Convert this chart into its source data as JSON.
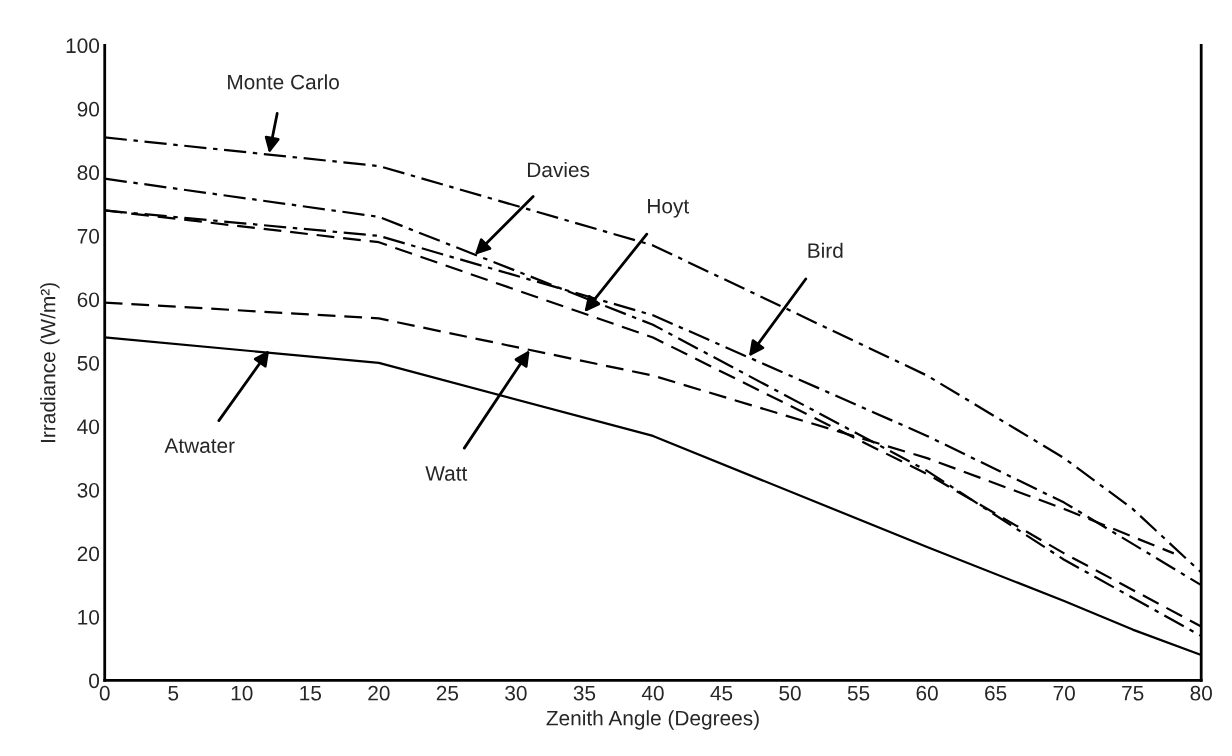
{
  "chart_data": {
    "type": "line",
    "xlabel": "Zenith Angle (Degrees)",
    "ylabel": "Irradiance (W/m²)",
    "series": [
      {
        "color": "#000000",
        "line_style": "dashdot",
        "x": [
          0,
          20,
          40,
          60,
          70,
          75,
          80
        ],
        "values": [
          85.5,
          81,
          68.5,
          48,
          35,
          27,
          17
        ]
      },
      {
        "color": "#000000",
        "line_style": "dashdot",
        "x": [
          0,
          20,
          40,
          60,
          70,
          80
        ],
        "values": [
          74,
          70,
          57.5,
          38.5,
          28,
          15
        ]
      },
      {
        "color": "#000000",
        "line_style": "dashdot",
        "x": [
          0,
          20,
          40,
          60,
          70,
          80
        ],
        "values": [
          79,
          73,
          56,
          33,
          19,
          7
        ]
      },
      {
        "color": "#000000",
        "line_style": "dashed",
        "x": [
          0,
          20,
          40,
          60,
          70,
          80
        ],
        "values": [
          74,
          69,
          54,
          32.5,
          20,
          8.5
        ]
      },
      {
        "color": "#000000",
        "line_style": "dashed",
        "x": [
          0,
          20,
          40,
          60,
          70,
          78
        ],
        "values": [
          59.5,
          57,
          48,
          35,
          27,
          20
        ]
      },
      {
        "color": "#000000",
        "line_style": "solid",
        "x": [
          0,
          20,
          40,
          60,
          70,
          75,
          80
        ],
        "values": [
          54,
          50,
          38.5,
          21,
          12.5,
          8,
          4
        ]
      }
    ],
    "annotations": [
      {
        "text": "Monte Carlo",
        "x": 12,
        "y": 83
      },
      {
        "text": "Davies",
        "x": 27,
        "y": 67
      },
      {
        "text": "Hoyt",
        "x": 35,
        "y": 58
      },
      {
        "text": "Bird",
        "x": 47,
        "y": 51
      },
      {
        "text": "Atwater",
        "x": 12,
        "y": 52
      },
      {
        "text": "Watt",
        "x": 31,
        "y": 52
      }
    ],
    "xlim": [
      0,
      80
    ],
    "ylim": [
      0,
      100
    ],
    "xticks": [
      0,
      5,
      10,
      15,
      20,
      25,
      30,
      35,
      40,
      45,
      50,
      55,
      60,
      65,
      70,
      75,
      80
    ],
    "yticks": [
      0,
      10,
      20,
      30,
      40,
      50,
      60,
      70,
      80,
      90,
      100
    ],
    "marker": "none"
  }
}
